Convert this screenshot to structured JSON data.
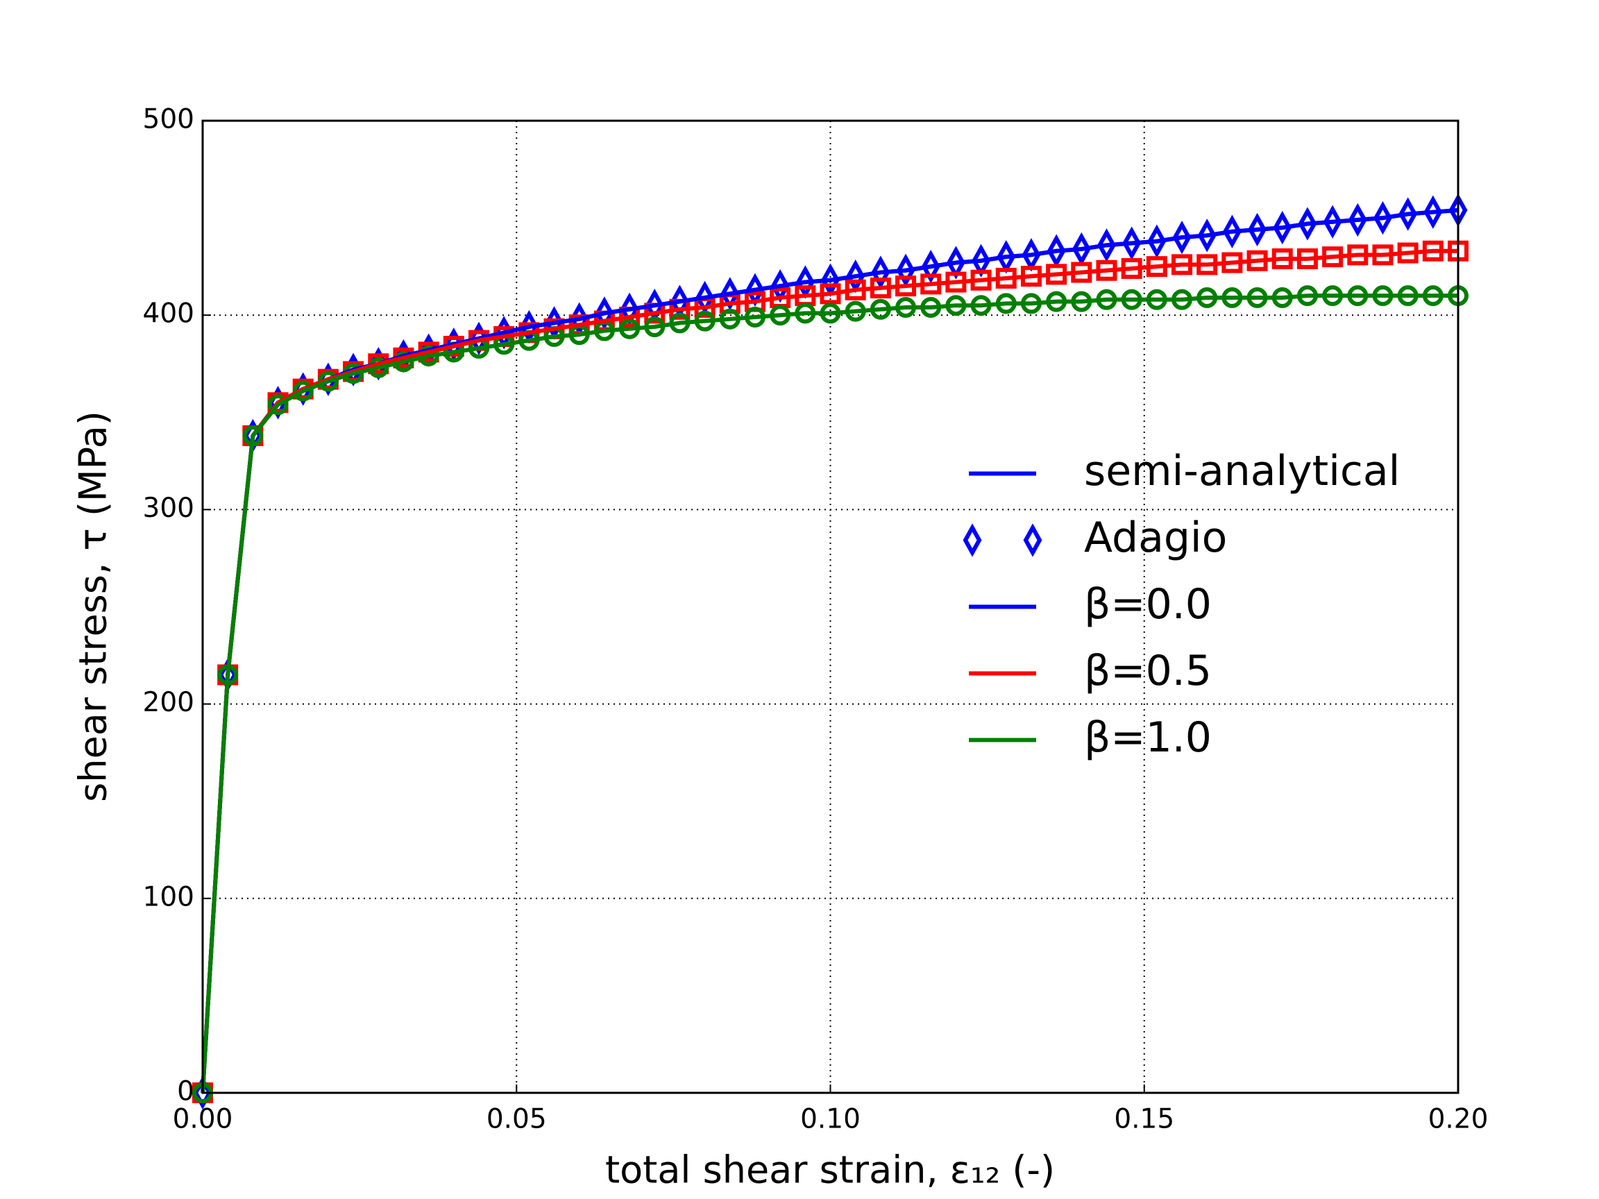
{
  "chart_data": {
    "type": "line",
    "xlabel": "total shear strain, ε₁₂ (-)",
    "ylabel": "shear stress, τ (MPa)",
    "x": [
      0,
      0.004,
      0.008,
      0.012,
      0.016,
      0.02,
      0.024,
      0.028,
      0.032,
      0.036,
      0.04,
      0.044,
      0.048,
      0.052,
      0.056,
      0.06,
      0.064,
      0.068,
      0.072,
      0.076,
      0.08,
      0.084,
      0.088,
      0.092,
      0.096,
      0.1,
      0.104,
      0.108,
      0.112,
      0.116,
      0.12,
      0.124,
      0.128,
      0.132,
      0.136,
      0.14,
      0.144,
      0.148,
      0.152,
      0.156,
      0.16,
      0.164,
      0.168,
      0.172,
      0.176,
      0.18,
      0.184,
      0.188,
      0.192,
      0.196,
      0.2
    ],
    "series": [
      {
        "name": "semi-analytical",
        "color": "#0000ff",
        "line": true,
        "marker": null,
        "values": [
          0,
          215,
          338,
          355,
          362,
          367,
          372,
          375,
          379,
          382,
          385,
          388,
          391,
          394,
          396,
          398,
          401,
          403,
          405,
          407,
          409,
          411,
          413,
          415,
          417,
          418,
          420,
          422,
          423,
          425,
          427,
          428,
          430,
          431,
          433,
          434,
          436,
          437,
          438,
          440,
          441,
          443,
          444,
          445,
          447,
          448,
          449,
          450,
          452,
          453,
          454
        ]
      },
      {
        "name": "Adagio",
        "color": "#0000ff",
        "line": false,
        "marker": "diamond",
        "values": [
          0,
          215,
          338,
          355,
          362,
          367,
          372,
          375,
          379,
          382,
          385,
          388,
          391,
          394,
          396,
          398,
          401,
          403,
          405,
          407,
          409,
          411,
          413,
          415,
          417,
          418,
          420,
          422,
          423,
          425,
          427,
          428,
          430,
          431,
          433,
          434,
          436,
          437,
          438,
          440,
          441,
          443,
          444,
          445,
          447,
          448,
          449,
          450,
          452,
          453,
          454
        ]
      },
      {
        "name": "β=0.0",
        "color": "#0000ff",
        "line": true,
        "marker": null,
        "values": [
          0,
          215,
          338,
          355,
          362,
          367,
          372,
          375,
          379,
          382,
          385,
          388,
          391,
          394,
          396,
          398,
          401,
          403,
          405,
          407,
          409,
          411,
          413,
          415,
          417,
          418,
          420,
          422,
          423,
          425,
          427,
          428,
          430,
          431,
          433,
          434,
          436,
          437,
          438,
          440,
          441,
          443,
          444,
          445,
          447,
          448,
          449,
          450,
          452,
          453,
          454
        ]
      },
      {
        "name": "β=0.5",
        "color": "#ff0000",
        "line": true,
        "marker": "square",
        "values": [
          0,
          215,
          338,
          355,
          362,
          367,
          371,
          375,
          378,
          381,
          384,
          387,
          389,
          391,
          393,
          395,
          397,
          399,
          401,
          403,
          404,
          406,
          407,
          409,
          410,
          411,
          413,
          414,
          415,
          416,
          417,
          418,
          419,
          420,
          421,
          422,
          423,
          424,
          425,
          426,
          426,
          427,
          428,
          429,
          429,
          430,
          431,
          431,
          432,
          433,
          433
        ]
      },
      {
        "name": "β=1.0",
        "color": "#008000",
        "line": true,
        "marker": "circle",
        "values": [
          0,
          215,
          338,
          354,
          361,
          366,
          370,
          373,
          376,
          379,
          381,
          383,
          385,
          387,
          389,
          390,
          392,
          393,
          394,
          396,
          397,
          398,
          399,
          400,
          401,
          401,
          402,
          403,
          404,
          404,
          405,
          405,
          406,
          406,
          407,
          407,
          408,
          408,
          408,
          408,
          409,
          409,
          409,
          409,
          410,
          410,
          410,
          410,
          410,
          410,
          410
        ]
      }
    ],
    "xlim": [
      0,
      0.2
    ],
    "xticks": [
      {
        "value": 0,
        "label": "0.00"
      },
      {
        "value": 0.05,
        "label": "0.05"
      },
      {
        "value": 0.1,
        "label": "0.10"
      },
      {
        "value": 0.15,
        "label": "0.15"
      },
      {
        "value": 0.2,
        "label": "0.20"
      }
    ],
    "ylim": [
      0,
      500
    ],
    "yticks": [
      0,
      100,
      200,
      300,
      400,
      500
    ],
    "grid": true,
    "legend": "center right"
  }
}
